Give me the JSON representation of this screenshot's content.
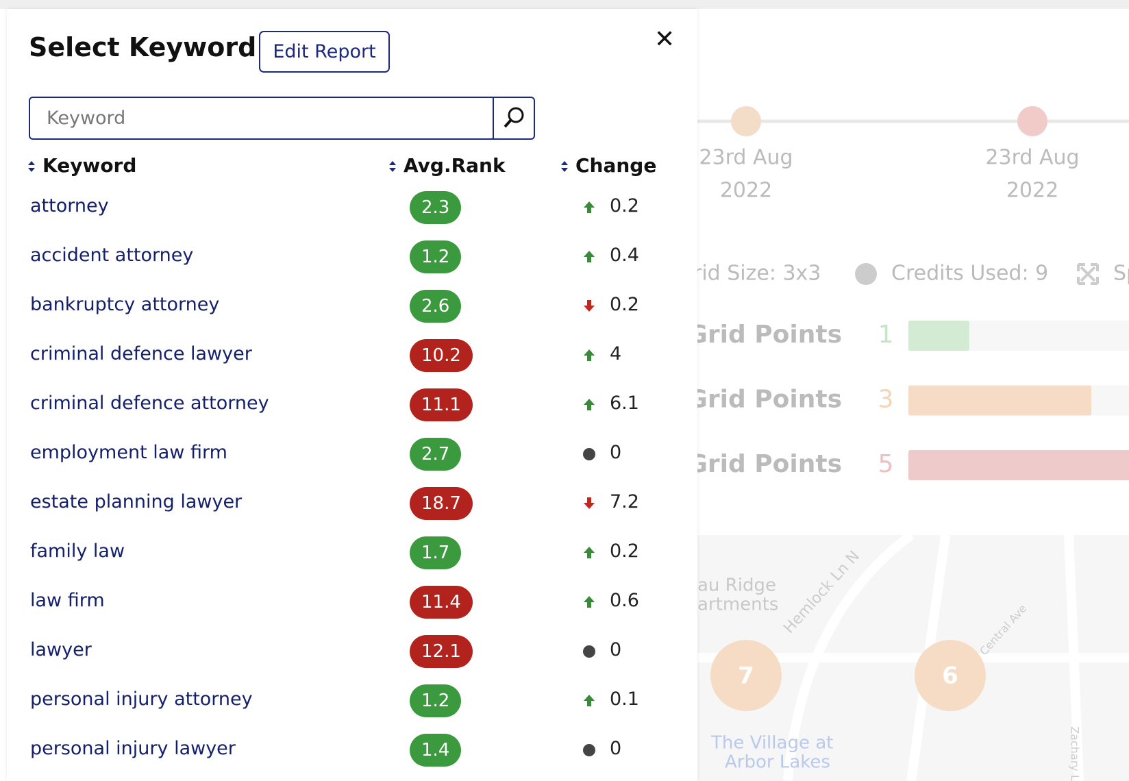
{
  "background": {
    "timeline": [
      {
        "date": "23rd Aug",
        "year": "2022",
        "color": "#f3dcc8"
      },
      {
        "date": "23rd Aug",
        "year": "2022",
        "color": "#f0cbc8"
      }
    ],
    "stats": {
      "grid_size": "rid Size: 3x3",
      "credits": "Credits Used: 9",
      "cut": "Sp"
    },
    "grid_points": [
      {
        "label": "Grid Points",
        "value": 1,
        "color": "#d3ead3",
        "text_color": "#c6e4c6"
      },
      {
        "label": "Grid Points",
        "value": 3,
        "color": "#f6dcc5",
        "text_color": "#f3d4b8"
      },
      {
        "label": "Grid Points",
        "value": 5,
        "color": "#efcaca",
        "text_color": "#ecc0c0"
      }
    ],
    "map": {
      "places": [
        "au Ridge",
        "artments",
        "The Village at",
        "Arbor Lakes"
      ],
      "streets": [
        "Hemlock Ln N",
        "Central Ave",
        "Zachary L"
      ],
      "clusters": [
        7,
        6
      ]
    }
  },
  "modal": {
    "title": "Select Keyword",
    "button": "Edit Report",
    "search_placeholder": "Keyword",
    "columns": [
      "Keyword",
      "Avg.Rank",
      "Change"
    ],
    "rows": [
      {
        "keyword": "attorney",
        "rank": 2.3,
        "badge_color": "#3b9a3e",
        "trend": "up",
        "change": 0.2
      },
      {
        "keyword": "accident attorney",
        "rank": 1.2,
        "badge_color": "#3b9a3e",
        "trend": "up",
        "change": 0.4
      },
      {
        "keyword": "bankruptcy attorney",
        "rank": 2.6,
        "badge_color": "#3b9a3e",
        "trend": "down",
        "change": 0.2
      },
      {
        "keyword": "criminal defence lawyer",
        "rank": 10.2,
        "badge_color": "#b3231d",
        "trend": "up",
        "change": 4
      },
      {
        "keyword": "criminal defence attorney",
        "rank": 11.1,
        "badge_color": "#b3231d",
        "trend": "up",
        "change": 6.1
      },
      {
        "keyword": "employment law firm",
        "rank": 2.7,
        "badge_color": "#3b9a3e",
        "trend": "flat",
        "change": 0
      },
      {
        "keyword": "estate planning lawyer",
        "rank": 18.7,
        "badge_color": "#b3231d",
        "trend": "down",
        "change": 7.2
      },
      {
        "keyword": "family law",
        "rank": 1.7,
        "badge_color": "#3b9a3e",
        "trend": "up",
        "change": 0.2
      },
      {
        "keyword": "law firm",
        "rank": 11.4,
        "badge_color": "#b3231d",
        "trend": "up",
        "change": 0.6
      },
      {
        "keyword": "lawyer",
        "rank": 12.1,
        "badge_color": "#b3231d",
        "trend": "flat",
        "change": 0
      },
      {
        "keyword": "personal injury attorney",
        "rank": 1.2,
        "badge_color": "#3b9a3e",
        "trend": "up",
        "change": 0.1
      },
      {
        "keyword": "personal injury lawyer",
        "rank": 1.4,
        "badge_color": "#3b9a3e",
        "trend": "flat",
        "change": 0
      }
    ]
  }
}
